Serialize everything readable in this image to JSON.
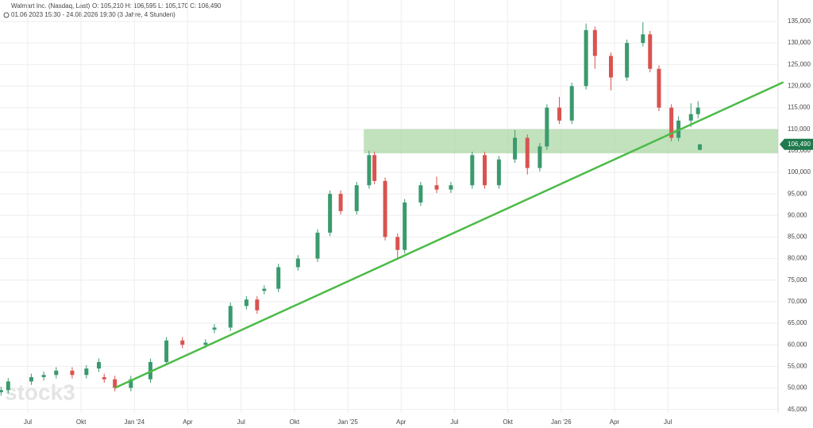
{
  "chart_data": {
    "type": "candlestick",
    "title": "Walmart Inc. (Nasdaq, Last)",
    "header_quote": "O: 105,210  H: 106,595  L: 105,170  C: 106,490",
    "subtitle": "01.06.2023 15:30 - 24.08.2026 19:30   (3 Jahre, 4 Stunden)",
    "watermark": "stock3",
    "last_value_label": "106,490",
    "up_color": "#3a9a6e",
    "down_color": "#d9534f",
    "x": [
      -1.5,
      -1.1,
      0.2,
      0.9,
      1.6,
      2.5,
      3.3,
      4.0,
      4.3,
      4.9,
      5.8,
      6.9,
      7.8,
      8.7,
      10.0,
      10.5,
      11.4,
      12.3,
      12.9,
      13.3,
      14.1,
      15.2,
      16.3,
      17.0,
      17.6,
      18.5,
      19.2,
      19.5,
      20.1,
      20.8,
      21.2,
      22.1,
      23.0,
      23.8,
      25.0,
      25.7,
      26.5,
      27.4,
      28.1,
      28.8,
      29.2,
      29.9,
      30.6,
      31.4,
      31.9,
      32.8,
      33.7,
      34.6,
      35.0,
      35.5,
      36.2,
      36.6,
      37.3,
      37.7,
      37.8
    ],
    "open": [
      49000,
      49500,
      51500,
      52500,
      53000,
      54000,
      53000,
      54500,
      52500,
      52000,
      50000,
      52000,
      56000,
      61000,
      60000,
      63500,
      64000,
      69000,
      70500,
      72500,
      73000,
      78000,
      80000,
      86000,
      95000,
      91000,
      97000,
      104000,
      98000,
      85000,
      82000,
      93000,
      97000,
      96000,
      97000,
      104000,
      97000,
      103000,
      108000,
      101000,
      106000,
      115000,
      112000,
      120000,
      133000,
      127000,
      122000,
      130000,
      132000,
      124000,
      115000,
      108000,
      112000,
      113500,
      105210
    ],
    "high": [
      50300,
      52300,
      53300,
      53800,
      54800,
      54800,
      55300,
      56800,
      53300,
      52800,
      52800,
      56800,
      61800,
      61800,
      61300,
      64800,
      69800,
      71300,
      71300,
      73800,
      78800,
      80800,
      86800,
      95800,
      95800,
      97800,
      105000,
      104800,
      98800,
      85800,
      93800,
      97800,
      99000,
      97800,
      104800,
      104800,
      103800,
      109800,
      108800,
      106800,
      115800,
      117500,
      120800,
      134500,
      133800,
      127800,
      130800,
      134800,
      132800,
      124800,
      115800,
      113000,
      116000,
      116500,
      106595
    ],
    "low": [
      48200,
      48700,
      50700,
      51700,
      52200,
      52200,
      52200,
      53700,
      51200,
      49200,
      49200,
      51200,
      55200,
      59200,
      59200,
      62700,
      63200,
      68200,
      67200,
      71700,
      72200,
      77200,
      79200,
      85200,
      90200,
      90200,
      96200,
      97200,
      84200,
      80000,
      81200,
      92200,
      95200,
      95200,
      96200,
      96200,
      96200,
      102200,
      99500,
      100200,
      105200,
      111200,
      111200,
      119200,
      124000,
      119000,
      121200,
      129200,
      123200,
      114200,
      107200,
      107200,
      110500,
      112500,
      105170
    ],
    "close": [
      49500,
      51500,
      52500,
      53000,
      54000,
      53000,
      54500,
      56000,
      52000,
      50000,
      52000,
      56000,
      61000,
      60000,
      60500,
      64000,
      69000,
      70500,
      68000,
      73000,
      78000,
      80000,
      86000,
      95000,
      91000,
      97000,
      104000,
      98000,
      85000,
      82000,
      93000,
      97000,
      96000,
      97000,
      104000,
      97000,
      103000,
      108000,
      101000,
      106000,
      115000,
      112000,
      120000,
      133000,
      127000,
      122000,
      130000,
      132000,
      124000,
      115000,
      108000,
      112000,
      113500,
      115000,
      106490
    ],
    "xlim": [
      -1.56,
      42.2
    ],
    "ylim": [
      44200,
      136200
    ],
    "xticks": [
      {
        "value": 0,
        "label": "Jul"
      },
      {
        "value": 3,
        "label": "Okt"
      },
      {
        "value": 6,
        "label": "Jan '24"
      },
      {
        "value": 9,
        "label": "Apr"
      },
      {
        "value": 12,
        "label": "Jul"
      },
      {
        "value": 15,
        "label": "Okt"
      },
      {
        "value": 18,
        "label": "Jan '25"
      },
      {
        "value": 21,
        "label": "Apr"
      },
      {
        "value": 24,
        "label": "Jul"
      },
      {
        "value": 27,
        "label": "Okt"
      },
      {
        "value": 30,
        "label": "Jan '26"
      },
      {
        "value": 33,
        "label": "Apr"
      },
      {
        "value": 36,
        "label": "Jul"
      }
    ],
    "yticks": [
      {
        "value": 45000,
        "label": "45,000"
      },
      {
        "value": 50000,
        "label": "50,000"
      },
      {
        "value": 55000,
        "label": "55,000"
      },
      {
        "value": 60000,
        "label": "60,000"
      },
      {
        "value": 65000,
        "label": "65,000"
      },
      {
        "value": 70000,
        "label": "70,000"
      },
      {
        "value": 75000,
        "label": "75,000"
      },
      {
        "value": 80000,
        "label": "80,000"
      },
      {
        "value": 85000,
        "label": "85,000"
      },
      {
        "value": 90000,
        "label": "90,000"
      },
      {
        "value": 95000,
        "label": "95,000"
      },
      {
        "value": 100000,
        "label": "100,000"
      },
      {
        "value": 105000,
        "label": "105,000"
      },
      {
        "value": 110000,
        "label": "110,000"
      },
      {
        "value": 115000,
        "label": "115,000"
      },
      {
        "value": 120000,
        "label": "120,000"
      },
      {
        "value": 125000,
        "label": "125,000"
      },
      {
        "value": 130000,
        "label": "130,000"
      },
      {
        "value": 135000,
        "label": "135,000"
      }
    ],
    "grid": true,
    "trendline": {
      "x": [
        4.9,
        42.5
      ],
      "y": [
        50000,
        120900
      ],
      "color": "#4cbb47"
    },
    "zone": {
      "x": [
        18.9,
        42.2
      ],
      "y": [
        104400,
        110000
      ],
      "color": "#9fd39a"
    }
  }
}
